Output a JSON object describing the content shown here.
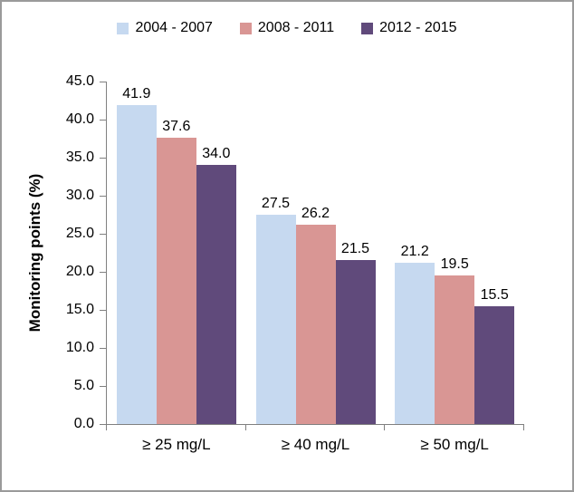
{
  "chart_data": {
    "type": "bar",
    "title": "",
    "xlabel": "",
    "ylabel": "Monitoring points (%)",
    "categories": [
      "≥ 25 mg/L",
      "≥ 40 mg/L",
      "≥ 50 mg/L"
    ],
    "series": [
      {
        "name": "2004 - 2007",
        "color": "#c6d9f0",
        "values": [
          41.9,
          27.5,
          21.2
        ]
      },
      {
        "name": "2008 - 2011",
        "color": "#d99694",
        "values": [
          37.6,
          26.2,
          19.5
        ]
      },
      {
        "name": "2012 - 2015",
        "color": "#604a7b",
        "values": [
          34.0,
          21.5,
          15.5
        ]
      }
    ],
    "ylim": [
      0,
      45
    ],
    "ytick_step": 5,
    "ytick_labels": [
      "45.0",
      "40.0",
      "35.0",
      "30.0",
      "25.0",
      "20.0",
      "15.0",
      "10.0",
      "5.0",
      "0.0"
    ],
    "data_labels": true,
    "data_label_format": "0.0",
    "grid": false,
    "legend_position": "top"
  }
}
